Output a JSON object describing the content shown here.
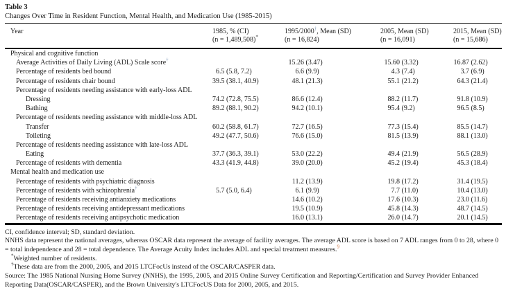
{
  "title": "Table 3",
  "caption": "Changes Over Time in Resident Function, Mental Health, and Medication Use (1985-2015)",
  "colors": {
    "text": "#1c1c1c",
    "rule": "#000000",
    "dagger_marker": "#7f9ab8",
    "citation_link": "#cc6a2e"
  },
  "table": {
    "columns": [
      {
        "line1": [
          "Year"
        ],
        "line2": []
      },
      {
        "line1": [
          "1985, % (CI)"
        ],
        "line2": [
          "(n = 1,489,508)",
          "^*"
        ]
      },
      {
        "line1": [
          "1995/2000",
          "^†",
          ", Mean (SD)"
        ],
        "line2": [
          "(n = 16,824)"
        ]
      },
      {
        "line1": [
          "2005, Mean (SD)"
        ],
        "line2": [
          "(n = 16,091)"
        ]
      },
      {
        "line1": [
          "2015, Mean (SD)"
        ],
        "line2": [
          "(n = 15,686)"
        ]
      }
    ],
    "rows": [
      {
        "label": "Physical and cognitive function",
        "indent": 0,
        "values": [
          "",
          "",
          "",
          ""
        ]
      },
      {
        "label": "Average Activities of Daily Living (ADL) Scale score",
        "sup": "†",
        "indent": 1,
        "values": [
          "",
          "15.26 (3.47)",
          "15.60 (3.32)",
          "16.87 (2.62)"
        ]
      },
      {
        "label": "Percentage of residents bed bound",
        "indent": 1,
        "values": [
          "6.5 (5.8, 7.2)",
          "6.6 (9.9)",
          "4.3 (7.4)",
          "3.7 (6.9)"
        ]
      },
      {
        "label": "Percentage of residents chair bound",
        "indent": 1,
        "values": [
          "39.5 (38.1, 40.9)",
          "48.1 (21.3)",
          "55.1 (21.2)",
          "64.3 (21.4)"
        ]
      },
      {
        "label": "Percentage of residents needing assistance with early-loss ADL",
        "indent": 1,
        "values": [
          "",
          "",
          "",
          ""
        ]
      },
      {
        "label": "Dressing",
        "indent": 2,
        "values": [
          "74.2 (72.8, 75.5)",
          "86.6 (12.4)",
          "88.2 (11.7)",
          "91.8 (10.9)"
        ]
      },
      {
        "label": "Bathing",
        "indent": 2,
        "values": [
          "89.2 (88.1, 90.2)",
          "94.2 (10.1)",
          "95.4 (9.2)",
          "96.5 (8.5)"
        ]
      },
      {
        "label": "Percentage of residents needing assistance with middle-loss ADL",
        "indent": 1,
        "values": [
          "",
          "",
          "",
          ""
        ]
      },
      {
        "label": "Transfer",
        "indent": 2,
        "values": [
          "60.2 (58.8, 61.7)",
          "72.7 (16.5)",
          "77.3 (15.4)",
          "85.5 (14.7)"
        ]
      },
      {
        "label": "Toileting",
        "indent": 2,
        "values": [
          "49.2 (47.7, 50.6)",
          "76.6 (15.0)",
          "81.5 (13.9)",
          "88.1 (13.0)"
        ]
      },
      {
        "label": "Percentage of residents needing assistance with late-loss ADL",
        "indent": 1,
        "values": [
          "",
          "",
          "",
          ""
        ]
      },
      {
        "label": "Eating",
        "indent": 2,
        "values": [
          "37.7 (36.3, 39.1)",
          "53.0 (22.2)",
          "49.4 (21.9)",
          "56.5 (28.9)"
        ]
      },
      {
        "label": "Percentage of residents with dementia",
        "indent": 1,
        "values": [
          "43.3 (41.9, 44.8)",
          "39.0 (20.0)",
          "45.2 (19.4)",
          "45.3 (18.4)"
        ]
      },
      {
        "label": "Mental health and medication use",
        "indent": 0,
        "values": [
          "",
          "",
          "",
          ""
        ]
      },
      {
        "label": "Percentage of residents with psychiatric diagnosis",
        "indent": 1,
        "values": [
          "",
          "11.2 (13.9)",
          "19.8 (17.2)",
          "31.4 (19.5)"
        ]
      },
      {
        "label": "Percentage of residents with schizophrenia",
        "sup": "†",
        "indent": 1,
        "values": [
          "5.7 (5.0, 6.4)",
          "6.1 (9.9)",
          "7.7 (11.0)",
          "10.4 (13.0)"
        ]
      },
      {
        "label": "Percentage of residents receiving antianxiety medications",
        "indent": 1,
        "values": [
          "",
          "14.6 (10.2)",
          "17.6 (10.3)",
          "23.0 (11.6)"
        ]
      },
      {
        "label": "Percentage of residents receiving antidepressant medications",
        "indent": 1,
        "values": [
          "",
          "19.5 (10.9)",
          "45.8 (14.3)",
          "48.7 (14.5)"
        ]
      },
      {
        "label": "Percentage of residents receiving antipsychotic medication",
        "indent": 1,
        "values": [
          "",
          "16.0 (13.1)",
          "26.0 (14.7)",
          "20.1 (14.5)"
        ]
      }
    ]
  },
  "footnotes": [
    {
      "text": "CI, confidence interval; SD, standard deviation.",
      "indented": false
    },
    {
      "text": "NNHS data represent the national averages, whereas OSCAR data represent the average of facility averages. The average ADL score is based on 7 ADL ranges from 0 to 28, where 0 = total independence and 28 = total dependence. The Average Acuity Index includes ADL and special treatment measures.",
      "end_sup": "9",
      "indented": false
    },
    {
      "pre_sup": "*",
      "text": "Weighted number of residents.",
      "indented": true
    },
    {
      "pre_sup": "†",
      "text": "These data are from the 2000, 2005, and 2015 LTCFocUs instead of the OSCAR/CASPER data.",
      "indented": true
    },
    {
      "text": "Source: The 1985 National Nursing Home Survey (NNHS), the 1995, 2005, and 2015 Online Survey Certification and Reporting/Certification and Survey Provider Enhanced Reporting Data(OSCAR/CASPER), and the Brown University's LTCFocUS Data for 2000, 2005, and 2015.",
      "indented": false
    }
  ]
}
